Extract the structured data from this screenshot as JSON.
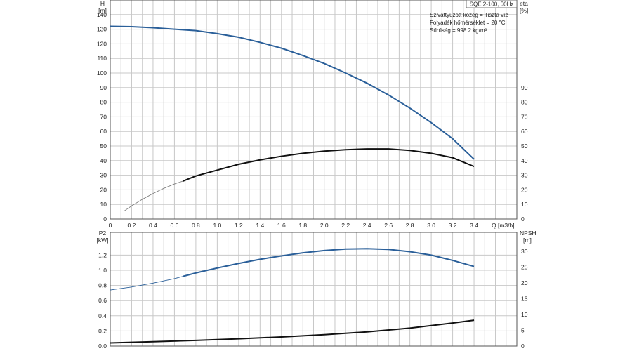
{
  "chart_data": [
    {
      "type": "line",
      "title": "SQE 2-100, 50Hz",
      "annotations": [
        "Szivattyúzott közeg = Tiszta víz",
        "Folyadék hőmérséklet = 20 °C",
        "Sűrűség = 998.2 kg/m³"
      ],
      "x_label": "Q [m3/h]",
      "x_ticks": [
        0,
        0.2,
        0.4,
        0.6,
        0.8,
        1.0,
        1.2,
        1.4,
        1.6,
        1.8,
        2.0,
        2.2,
        2.4,
        2.6,
        2.8,
        3.0,
        3.2,
        3.4
      ],
      "x_tick_labels": [
        "0",
        "0.2",
        "0.4",
        "0.6",
        "0.8",
        "1.0",
        "1.2",
        "1.4",
        "1.6",
        "1.8",
        "2.0",
        "2.2",
        "2.4",
        "2.6",
        "2.8",
        "3.0",
        "3.2",
        "3.4"
      ],
      "xlim": [
        0,
        3.8
      ],
      "left_axis": {
        "label_top": "H",
        "label_unit": "[m]",
        "ylim": [
          0,
          150
        ],
        "ticks": [
          0,
          10,
          20,
          30,
          40,
          50,
          60,
          70,
          80,
          90,
          100,
          110,
          120,
          130,
          140
        ]
      },
      "right_axis": {
        "label_top": "eta",
        "label_unit": "[%]",
        "ylim": [
          0,
          150
        ],
        "ticks": [
          0,
          10,
          20,
          30,
          40,
          50,
          60,
          70,
          80,
          90
        ]
      },
      "grid": true,
      "series": [
        {
          "name": "H",
          "axis": "left",
          "color": "#2a5f99",
          "x": [
            0,
            0.2,
            0.4,
            0.6,
            0.7,
            0.8,
            1.0,
            1.2,
            1.4,
            1.6,
            1.8,
            2.0,
            2.2,
            2.4,
            2.6,
            2.8,
            3.0,
            3.2,
            3.4
          ],
          "y": [
            132,
            131.7,
            131,
            130,
            129.5,
            129,
            127,
            124.5,
            121,
            117,
            112,
            106.5,
            100,
            93,
            85,
            76,
            66,
            55,
            41
          ]
        },
        {
          "name": "eta",
          "axis": "right",
          "color": "#111111",
          "dim_until": 0.68,
          "x": [
            0.13,
            0.2,
            0.3,
            0.4,
            0.5,
            0.6,
            0.68,
            0.8,
            1.0,
            1.2,
            1.4,
            1.6,
            1.8,
            2.0,
            2.2,
            2.4,
            2.6,
            2.8,
            3.0,
            3.2,
            3.4
          ],
          "y": [
            5.5,
            9,
            13.5,
            17.5,
            21,
            24,
            26,
            29.5,
            33.5,
            37.5,
            40.5,
            43,
            45,
            46.5,
            47.5,
            48,
            48,
            47,
            45,
            42,
            36
          ]
        }
      ]
    },
    {
      "type": "line",
      "x_ticks": [
        0,
        0.2,
        0.4,
        0.6,
        0.8,
        1.0,
        1.2,
        1.4,
        1.6,
        1.8,
        2.0,
        2.2,
        2.4,
        2.6,
        2.8,
        3.0,
        3.2,
        3.4
      ],
      "xlim": [
        0,
        3.8
      ],
      "left_axis": {
        "label_top": "P2",
        "label_unit": "[kW]",
        "ylim": [
          0,
          1.5
        ],
        "ticks": [
          0.0,
          0.2,
          0.4,
          0.6,
          0.8,
          1.0,
          1.2
        ],
        "tick_labels": [
          "0.0",
          "0.2",
          "0.4",
          "0.6",
          "0.8",
          "1.0",
          "1.2"
        ]
      },
      "right_axis": {
        "label_top": "NPSH",
        "label_unit": "[m]",
        "ylim": [
          0,
          36
        ],
        "ticks": [
          0,
          5,
          10,
          15,
          20,
          25,
          30
        ]
      },
      "grid": true,
      "series": [
        {
          "name": "P2",
          "axis": "left",
          "color": "#2a5f99",
          "dim_until": 0.68,
          "x": [
            0,
            0.2,
            0.4,
            0.6,
            0.68,
            0.8,
            1.0,
            1.2,
            1.4,
            1.6,
            1.8,
            2.0,
            2.2,
            2.4,
            2.6,
            2.8,
            3.0,
            3.2,
            3.4
          ],
          "y": [
            0.74,
            0.78,
            0.83,
            0.89,
            0.92,
            0.965,
            1.03,
            1.09,
            1.145,
            1.19,
            1.23,
            1.26,
            1.28,
            1.285,
            1.275,
            1.245,
            1.2,
            1.13,
            1.05
          ]
        },
        {
          "name": "NPSH",
          "axis": "right",
          "color": "#111111",
          "x": [
            0,
            0.4,
            0.8,
            1.2,
            1.6,
            2.0,
            2.4,
            2.8,
            3.0,
            3.2,
            3.4
          ],
          "y": [
            1.0,
            1.4,
            1.8,
            2.3,
            2.9,
            3.6,
            4.5,
            5.7,
            6.5,
            7.3,
            8.2
          ]
        }
      ]
    }
  ]
}
